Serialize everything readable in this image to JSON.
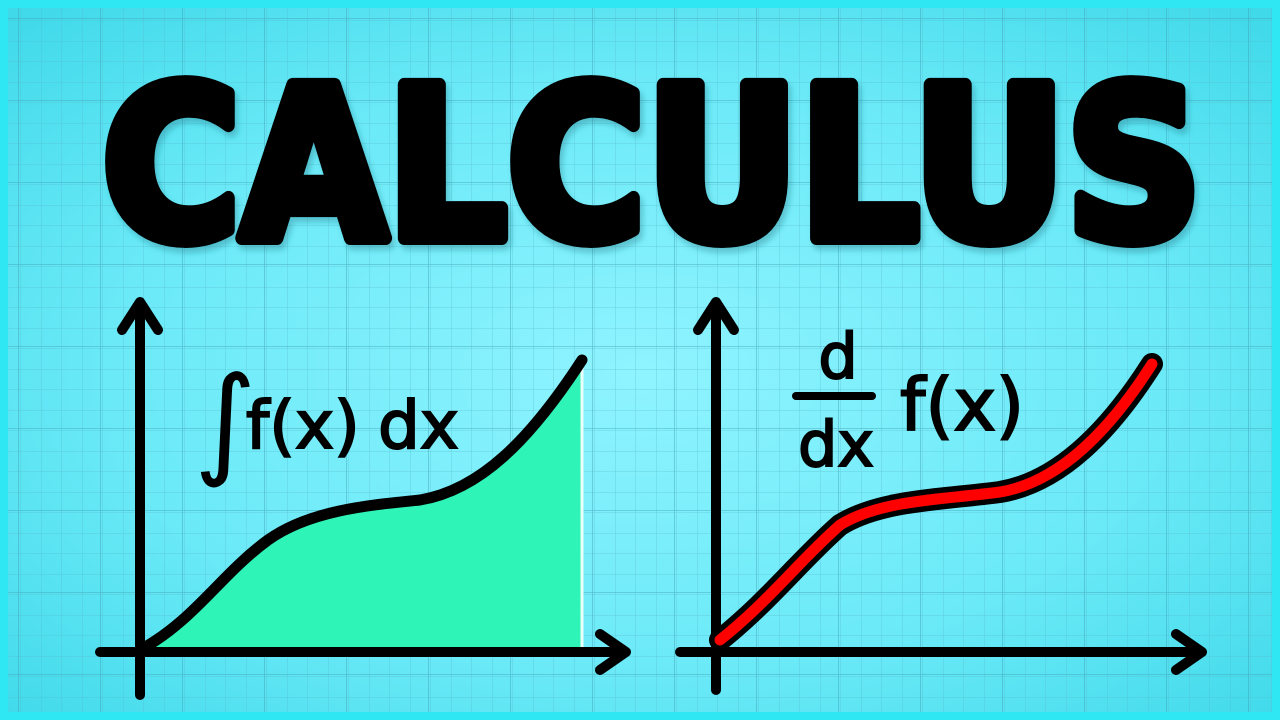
{
  "title": "CALCULUS",
  "integral_panel": {
    "label_integral_sign": "∫",
    "label_function": "f(x)",
    "label_differential": "dx",
    "curve_color": "#000000",
    "fill_color": "#2ef5b7"
  },
  "derivative_panel": {
    "label_numerator": "d",
    "label_denominator": "dx",
    "label_function": "f(x)",
    "curve_color": "#ff0000",
    "outline_color": "#000000"
  },
  "colors": {
    "background_light": "#8ff4ff",
    "background_dark": "#3fd9ea",
    "border": "#2fe6f3",
    "grid_minor": "#55b6c8",
    "grid_major": "#3f9fb3",
    "ink": "#000000"
  }
}
